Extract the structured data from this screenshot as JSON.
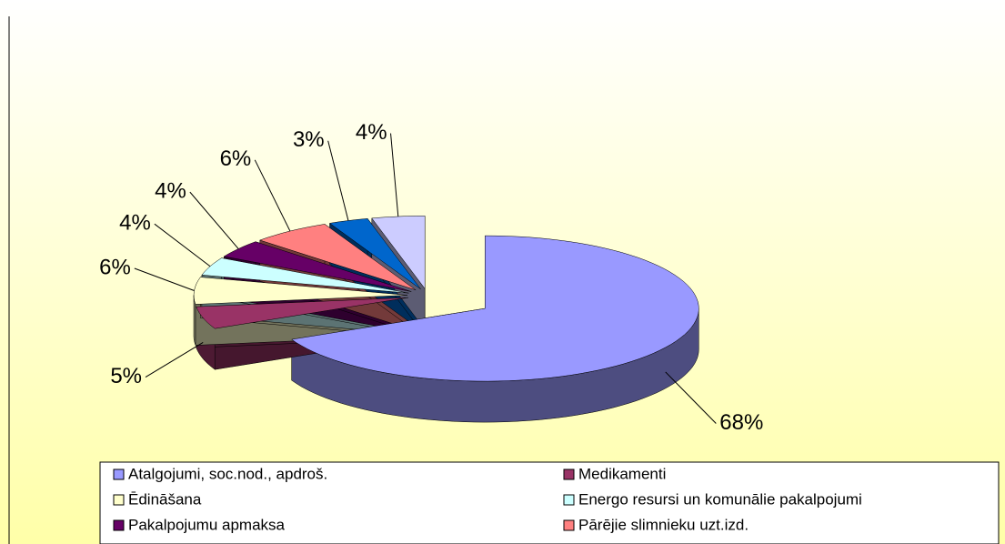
{
  "chart_data": {
    "type": "pie3d",
    "categories": [
      "Atalgojumi, soc.nod., apdroš.",
      "Medikamenti",
      "Ēdināšana",
      "Energo resursi un komunālie pakalpojumi",
      "Pakalpojumu apmaksa",
      "Pārējie slimnieku uzt.izd.",
      null,
      null
    ],
    "values": [
      68,
      5,
      6,
      4,
      4,
      6,
      3,
      4
    ],
    "value_labels": [
      "68%",
      "5%",
      "6%",
      "4%",
      "4%",
      "6%",
      "3%",
      "4%"
    ],
    "colors": [
      "#9999ff",
      "#993366",
      "#ffffcc",
      "#ccffff",
      "#660066",
      "#ff8080",
      "#0066cc",
      "#ccccff"
    ],
    "legend": "bottom"
  }
}
